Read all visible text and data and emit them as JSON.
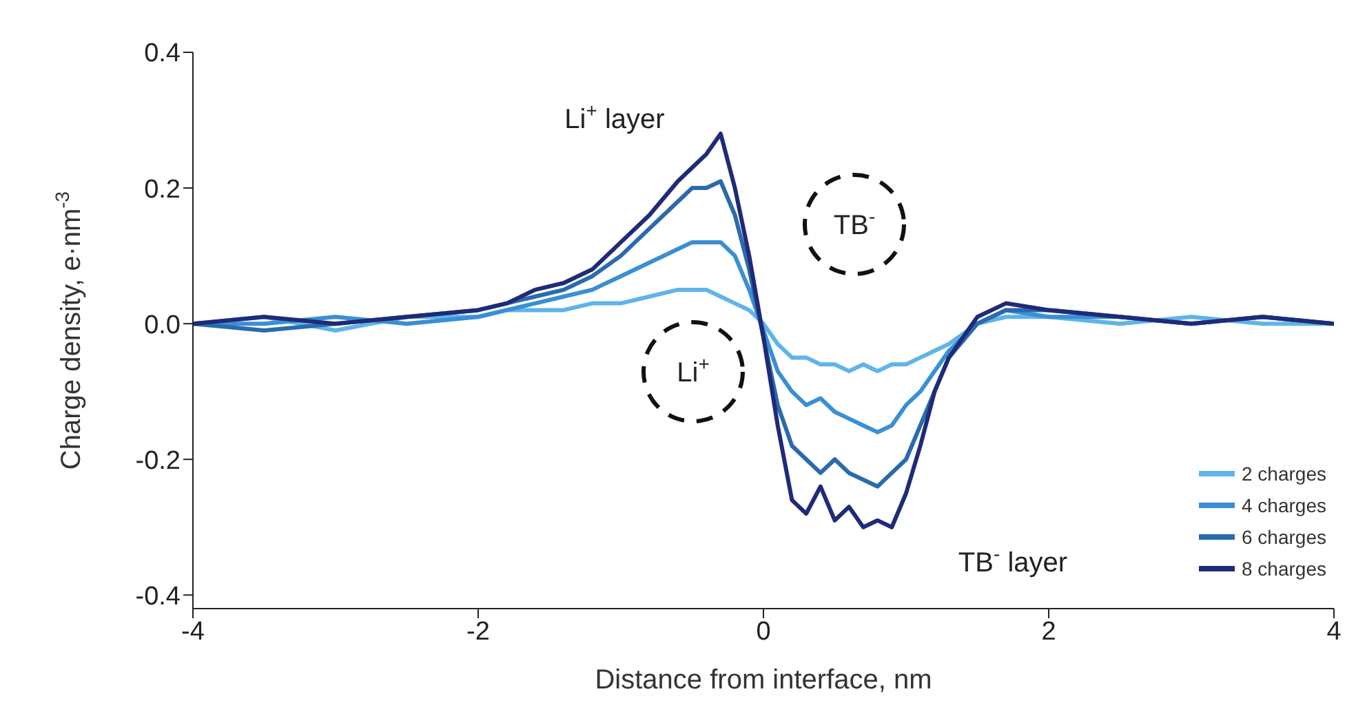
{
  "chart_data": {
    "type": "line",
    "xlabel": "Distance from interface, nm",
    "ylabel": "Charge density, e·nm$^{-3}$",
    "x": [
      -4,
      -3.5,
      -3,
      -2.5,
      -2,
      -1.8,
      -1.6,
      -1.4,
      -1.2,
      -1,
      -0.8,
      -0.6,
      -0.5,
      -0.4,
      -0.3,
      -0.2,
      -0.1,
      0,
      0.1,
      0.2,
      0.3,
      0.4,
      0.5,
      0.6,
      0.7,
      0.8,
      0.9,
      1,
      1.1,
      1.2,
      1.3,
      1.5,
      1.7,
      2,
      2.5,
      3,
      3.5,
      4
    ],
    "series": [
      {
        "name": "2 charges",
        "color": "#5fb4e8",
        "values": [
          0,
          0.01,
          -0.01,
          0.01,
          0.01,
          0.02,
          0.02,
          0.02,
          0.03,
          0.03,
          0.04,
          0.05,
          0.05,
          0.05,
          0.04,
          0.03,
          0.02,
          0,
          -0.03,
          -0.05,
          -0.05,
          -0.06,
          -0.06,
          -0.07,
          -0.06,
          -0.07,
          -0.06,
          -0.06,
          -0.05,
          -0.04,
          -0.03,
          0,
          0.01,
          0.01,
          0,
          0.01,
          0,
          0
        ]
      },
      {
        "name": "4 charges",
        "color": "#3a8fd4",
        "values": [
          0,
          0,
          0.01,
          0,
          0.01,
          0.02,
          0.03,
          0.04,
          0.05,
          0.07,
          0.09,
          0.11,
          0.12,
          0.12,
          0.12,
          0.1,
          0.05,
          -0.01,
          -0.07,
          -0.1,
          -0.12,
          -0.11,
          -0.13,
          -0.14,
          -0.15,
          -0.16,
          -0.15,
          -0.12,
          -0.1,
          -0.07,
          -0.04,
          0,
          0.02,
          0.01,
          0.01,
          0,
          0.01,
          0
        ]
      },
      {
        "name": "6 charges",
        "color": "#2a6aad",
        "values": [
          0,
          -0.01,
          0,
          0.01,
          0.02,
          0.03,
          0.04,
          0.05,
          0.07,
          0.1,
          0.14,
          0.18,
          0.2,
          0.2,
          0.21,
          0.16,
          0.08,
          -0.02,
          -0.12,
          -0.18,
          -0.2,
          -0.22,
          -0.2,
          -0.22,
          -0.23,
          -0.24,
          -0.22,
          -0.2,
          -0.15,
          -0.1,
          -0.05,
          0,
          0.02,
          0.02,
          0.01,
          0,
          0.01,
          0
        ]
      },
      {
        "name": "8 charges",
        "color": "#1f2a78",
        "values": [
          0,
          0.01,
          0,
          0.01,
          0.02,
          0.03,
          0.05,
          0.06,
          0.08,
          0.12,
          0.16,
          0.21,
          0.23,
          0.25,
          0.28,
          0.2,
          0.1,
          -0.02,
          -0.15,
          -0.26,
          -0.28,
          -0.24,
          -0.29,
          -0.27,
          -0.3,
          -0.29,
          -0.3,
          -0.25,
          -0.18,
          -0.1,
          -0.05,
          0.01,
          0.03,
          0.02,
          0.01,
          0,
          0.01,
          0
        ]
      }
    ],
    "xlim": [
      -4,
      4
    ],
    "xticks": [
      -4,
      -2,
      0,
      2,
      4
    ],
    "ylim": [
      -0.42,
      0.4
    ],
    "yticks": [
      0.4,
      0.2,
      {
        "value": 0,
        "label": "0.0"
      },
      -0.2,
      -0.4
    ],
    "legend": "bottom right",
    "grid": false,
    "annotations": [
      "Li$^{+}$ layer",
      "TB$^{-}$ layer",
      "TB$^{-}$",
      "Li$^{+}$"
    ]
  }
}
